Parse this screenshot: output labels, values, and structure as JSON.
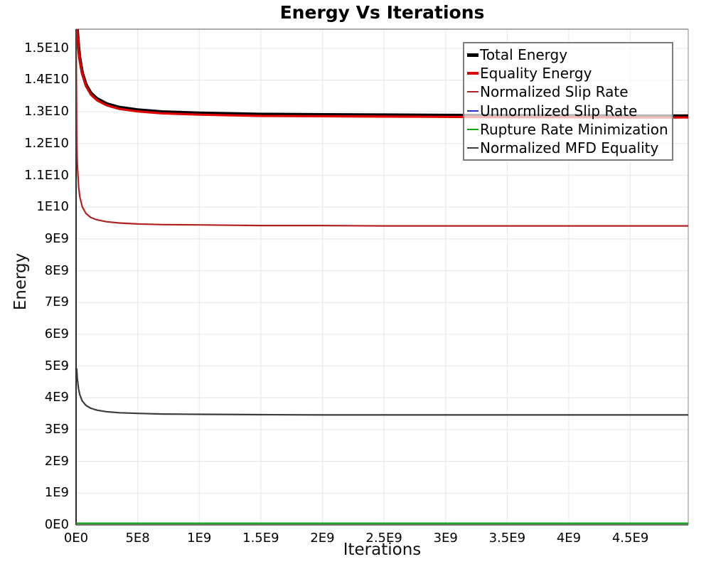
{
  "chart_data": {
    "type": "line",
    "title": "Energy Vs Iterations",
    "xlabel": "Iterations",
    "ylabel": "Energy",
    "grid": true,
    "legend_position": "top-right",
    "axis_units": "iterations and energy values are in units of 1e9",
    "xlim_e9": [
      0,
      4.97
    ],
    "ylim_e9": [
      0,
      15.6
    ],
    "xticks": [
      {
        "v": 0,
        "label": "0E0"
      },
      {
        "v": 0.5,
        "label": "5E8"
      },
      {
        "v": 1,
        "label": "1E9"
      },
      {
        "v": 1.5,
        "label": "1.5E9"
      },
      {
        "v": 2,
        "label": "2E9"
      },
      {
        "v": 2.5,
        "label": "2.5E9"
      },
      {
        "v": 3,
        "label": "3E9"
      },
      {
        "v": 3.5,
        "label": "3.5E9"
      },
      {
        "v": 4,
        "label": "4E9"
      },
      {
        "v": 4.5,
        "label": "4.5E9"
      }
    ],
    "yticks": [
      {
        "v": 0,
        "label": "0E0"
      },
      {
        "v": 1,
        "label": "1E9"
      },
      {
        "v": 2,
        "label": "2E9"
      },
      {
        "v": 3,
        "label": "3E9"
      },
      {
        "v": 4,
        "label": "4E9"
      },
      {
        "v": 5,
        "label": "5E9"
      },
      {
        "v": 6,
        "label": "6E9"
      },
      {
        "v": 7,
        "label": "7E9"
      },
      {
        "v": 8,
        "label": "8E9"
      },
      {
        "v": 9,
        "label": "9E9"
      },
      {
        "v": 10,
        "label": "1E10"
      },
      {
        "v": 11,
        "label": "1.1E10"
      },
      {
        "v": 12,
        "label": "1.2E10"
      },
      {
        "v": 13,
        "label": "1.3E10"
      },
      {
        "v": 14,
        "label": "1.4E10"
      },
      {
        "v": 15,
        "label": "1.5E10"
      }
    ],
    "colors": {
      "grid": "#eaeaea",
      "border_top_right": "#adadad",
      "axis_spine": "#2b2b2b",
      "legend_border": "#7d7d7d"
    },
    "series": [
      {
        "name": "Total Energy",
        "color": "#000000",
        "width": 4.5,
        "swatch_h": 5,
        "points": [
          [
            0,
            16.45
          ],
          [
            0.005,
            15.96
          ],
          [
            0.01,
            15.58
          ],
          [
            0.02,
            15.05
          ],
          [
            0.03,
            14.69
          ],
          [
            0.05,
            14.23
          ],
          [
            0.08,
            13.86
          ],
          [
            0.12,
            13.59
          ],
          [
            0.17,
            13.41
          ],
          [
            0.25,
            13.25
          ],
          [
            0.35,
            13.14
          ],
          [
            0.5,
            13.06
          ],
          [
            0.7,
            13.0
          ],
          [
            1,
            12.96
          ],
          [
            1.5,
            12.92
          ],
          [
            2,
            12.91
          ],
          [
            2.5,
            12.9
          ],
          [
            3,
            12.89
          ],
          [
            3.5,
            12.88
          ],
          [
            4,
            12.88
          ],
          [
            4.5,
            12.87
          ],
          [
            4.97,
            12.87
          ]
        ]
      },
      {
        "name": "Equality Energy",
        "color": "#e10000",
        "width": 3.2,
        "swatch_h": 4,
        "points": [
          [
            0,
            16.4
          ],
          [
            0.005,
            15.91
          ],
          [
            0.01,
            15.53
          ],
          [
            0.02,
            15.0
          ],
          [
            0.03,
            14.64
          ],
          [
            0.05,
            14.18
          ],
          [
            0.08,
            13.81
          ],
          [
            0.12,
            13.54
          ],
          [
            0.17,
            13.36
          ],
          [
            0.25,
            13.2
          ],
          [
            0.35,
            13.09
          ],
          [
            0.5,
            13.01
          ],
          [
            0.7,
            12.95
          ],
          [
            1,
            12.91
          ],
          [
            1.5,
            12.87
          ],
          [
            2,
            12.86
          ],
          [
            2.5,
            12.85
          ],
          [
            3,
            12.84
          ],
          [
            3.5,
            12.83
          ],
          [
            4,
            12.83
          ],
          [
            4.5,
            12.82
          ],
          [
            4.97,
            12.82
          ]
        ]
      },
      {
        "name": "Normalized Slip Rate",
        "color": "#b22222",
        "width": 2.2,
        "swatch_h": 2,
        "points": [
          [
            0,
            15.8
          ],
          [
            0.005,
            12.13
          ],
          [
            0.01,
            11.37
          ],
          [
            0.02,
            10.66
          ],
          [
            0.03,
            10.33
          ],
          [
            0.05,
            10.01
          ],
          [
            0.08,
            9.8
          ],
          [
            0.12,
            9.67
          ],
          [
            0.17,
            9.6
          ],
          [
            0.25,
            9.54
          ],
          [
            0.35,
            9.5
          ],
          [
            0.5,
            9.47
          ],
          [
            0.7,
            9.45
          ],
          [
            1,
            9.44
          ],
          [
            1.5,
            9.42
          ],
          [
            2,
            9.42
          ],
          [
            2.5,
            9.41
          ],
          [
            3,
            9.41
          ],
          [
            3.5,
            9.41
          ],
          [
            4,
            9.41
          ],
          [
            4.5,
            9.41
          ],
          [
            4.97,
            9.41
          ]
        ]
      },
      {
        "name": "Unnormlized Slip Rate",
        "color": "#2233bb",
        "width": 2,
        "swatch_h": 2,
        "points": [
          [
            0,
            0.05
          ],
          [
            4.97,
            0.05
          ]
        ]
      },
      {
        "name": "Rupture Rate Minimization",
        "color": "#10a810",
        "width": 2.2,
        "swatch_h": 2,
        "points": [
          [
            0,
            0.05
          ],
          [
            4.97,
            0.05
          ]
        ]
      },
      {
        "name": "Normalized MFD Equality",
        "color": "#3c3c3c",
        "width": 2.2,
        "swatch_h": 2,
        "points": [
          [
            0,
            4.92
          ],
          [
            0.005,
            4.91
          ],
          [
            0.01,
            4.62
          ],
          [
            0.02,
            4.28
          ],
          [
            0.03,
            4.1
          ],
          [
            0.05,
            3.9
          ],
          [
            0.08,
            3.76
          ],
          [
            0.12,
            3.67
          ],
          [
            0.17,
            3.61
          ],
          [
            0.25,
            3.56
          ],
          [
            0.35,
            3.53
          ],
          [
            0.5,
            3.51
          ],
          [
            0.7,
            3.49
          ],
          [
            1,
            3.48
          ],
          [
            1.5,
            3.47
          ],
          [
            2,
            3.46
          ],
          [
            2.5,
            3.46
          ],
          [
            3,
            3.46
          ],
          [
            3.5,
            3.46
          ],
          [
            4,
            3.46
          ],
          [
            4.5,
            3.46
          ],
          [
            4.97,
            3.46
          ]
        ]
      }
    ]
  }
}
